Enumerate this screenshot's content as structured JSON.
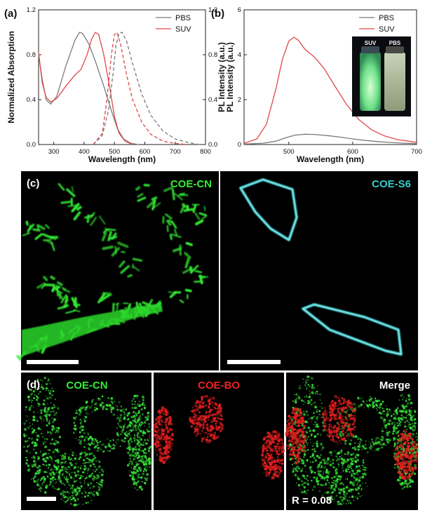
{
  "panel_labels": {
    "a": "(a)",
    "b": "(b)",
    "c": "(c)",
    "d": "(d)"
  },
  "colors": {
    "pbs": "#7a7a7a",
    "suv": "#e04848",
    "green": "#33ee33",
    "cyan": "#33cccc",
    "red": "#ee2222"
  },
  "chart_data": [
    {
      "type": "line",
      "panel": "a",
      "xlabel": "Wavelength (nm)",
      "ylabel": "Normalized Absorption",
      "ylabel_right": "PL Intensity (a.u.)",
      "xlim": [
        250,
        800
      ],
      "ylim": [
        0,
        1.2
      ],
      "xticks": [
        300,
        400,
        500,
        600,
        700,
        800
      ],
      "yticks": [
        0.0,
        0.4,
        0.8,
        1.2
      ],
      "legend": [
        "PBS",
        "SUV"
      ],
      "legend_position": "top-right",
      "series": [
        {
          "name": "PBS",
          "style": "solid",
          "x": [
            250,
            262,
            275,
            290,
            310,
            340,
            370,
            385,
            395,
            415,
            440,
            465,
            490,
            510,
            530,
            555,
            580
          ],
          "values": [
            0.8,
            0.58,
            0.4,
            0.36,
            0.43,
            0.7,
            0.93,
            1.0,
            0.99,
            0.9,
            0.72,
            0.52,
            0.3,
            0.14,
            0.05,
            0.01,
            0.0
          ]
        },
        {
          "name": "SUV",
          "style": "solid",
          "x": [
            250,
            262,
            275,
            290,
            310,
            340,
            370,
            390,
            410,
            425,
            437,
            448,
            465,
            485,
            500,
            515,
            535,
            560
          ],
          "values": [
            0.82,
            0.55,
            0.42,
            0.38,
            0.41,
            0.52,
            0.62,
            0.67,
            0.8,
            0.94,
            1.0,
            0.98,
            0.8,
            0.5,
            0.25,
            0.1,
            0.03,
            0.0
          ]
        },
        {
          "name": "PBS",
          "style": "dashed",
          "x": [
            430,
            460,
            480,
            495,
            505,
            515,
            525,
            540,
            560,
            590,
            620,
            660,
            700,
            740,
            780
          ],
          "values": [
            0.0,
            0.08,
            0.3,
            0.62,
            0.88,
            0.99,
            1.0,
            0.92,
            0.72,
            0.45,
            0.26,
            0.12,
            0.05,
            0.02,
            0.0
          ]
        },
        {
          "name": "SUV",
          "style": "dashed",
          "x": [
            430,
            460,
            475,
            490,
            500,
            508,
            520,
            540,
            560,
            590,
            620,
            660,
            700,
            740
          ],
          "values": [
            0.0,
            0.1,
            0.4,
            0.8,
            0.98,
            1.0,
            0.9,
            0.62,
            0.4,
            0.2,
            0.09,
            0.03,
            0.01,
            0.0
          ]
        }
      ]
    },
    {
      "type": "line",
      "panel": "b",
      "xlabel": "Wavelength (nm)",
      "ylabel": "PL Intensity (a.u.)",
      "xlim": [
        430,
        700
      ],
      "ylim": [
        0,
        6
      ],
      "xticks": [
        500,
        600,
        700
      ],
      "yticks": [
        0,
        2,
        4,
        6
      ],
      "legend": [
        "PBS",
        "SUV"
      ],
      "legend_position": "top-right",
      "series": [
        {
          "name": "PBS",
          "x": [
            430,
            460,
            480,
            495,
            510,
            525,
            540,
            560,
            580,
            600,
            620,
            640,
            660,
            680,
            700
          ],
          "values": [
            0.02,
            0.06,
            0.15,
            0.3,
            0.42,
            0.46,
            0.45,
            0.4,
            0.33,
            0.25,
            0.18,
            0.13,
            0.09,
            0.06,
            0.04
          ]
        },
        {
          "name": "SUV",
          "x": [
            430,
            450,
            465,
            480,
            490,
            500,
            508,
            515,
            525,
            540,
            555,
            570,
            590,
            610,
            630,
            650,
            670,
            700
          ],
          "values": [
            0.05,
            0.25,
            0.9,
            2.5,
            3.8,
            4.6,
            4.78,
            4.65,
            4.25,
            3.9,
            3.4,
            2.7,
            1.8,
            1.1,
            0.65,
            0.38,
            0.22,
            0.1
          ]
        }
      ],
      "inset_labels": [
        "SUV",
        "PBS"
      ]
    }
  ],
  "micrographs": {
    "c_left": "COE-CN",
    "c_right": "COE-S6",
    "d_left": "COE-CN",
    "d_mid": "COE-BO",
    "d_right": "Merge",
    "r_value": "R = 0.08"
  }
}
